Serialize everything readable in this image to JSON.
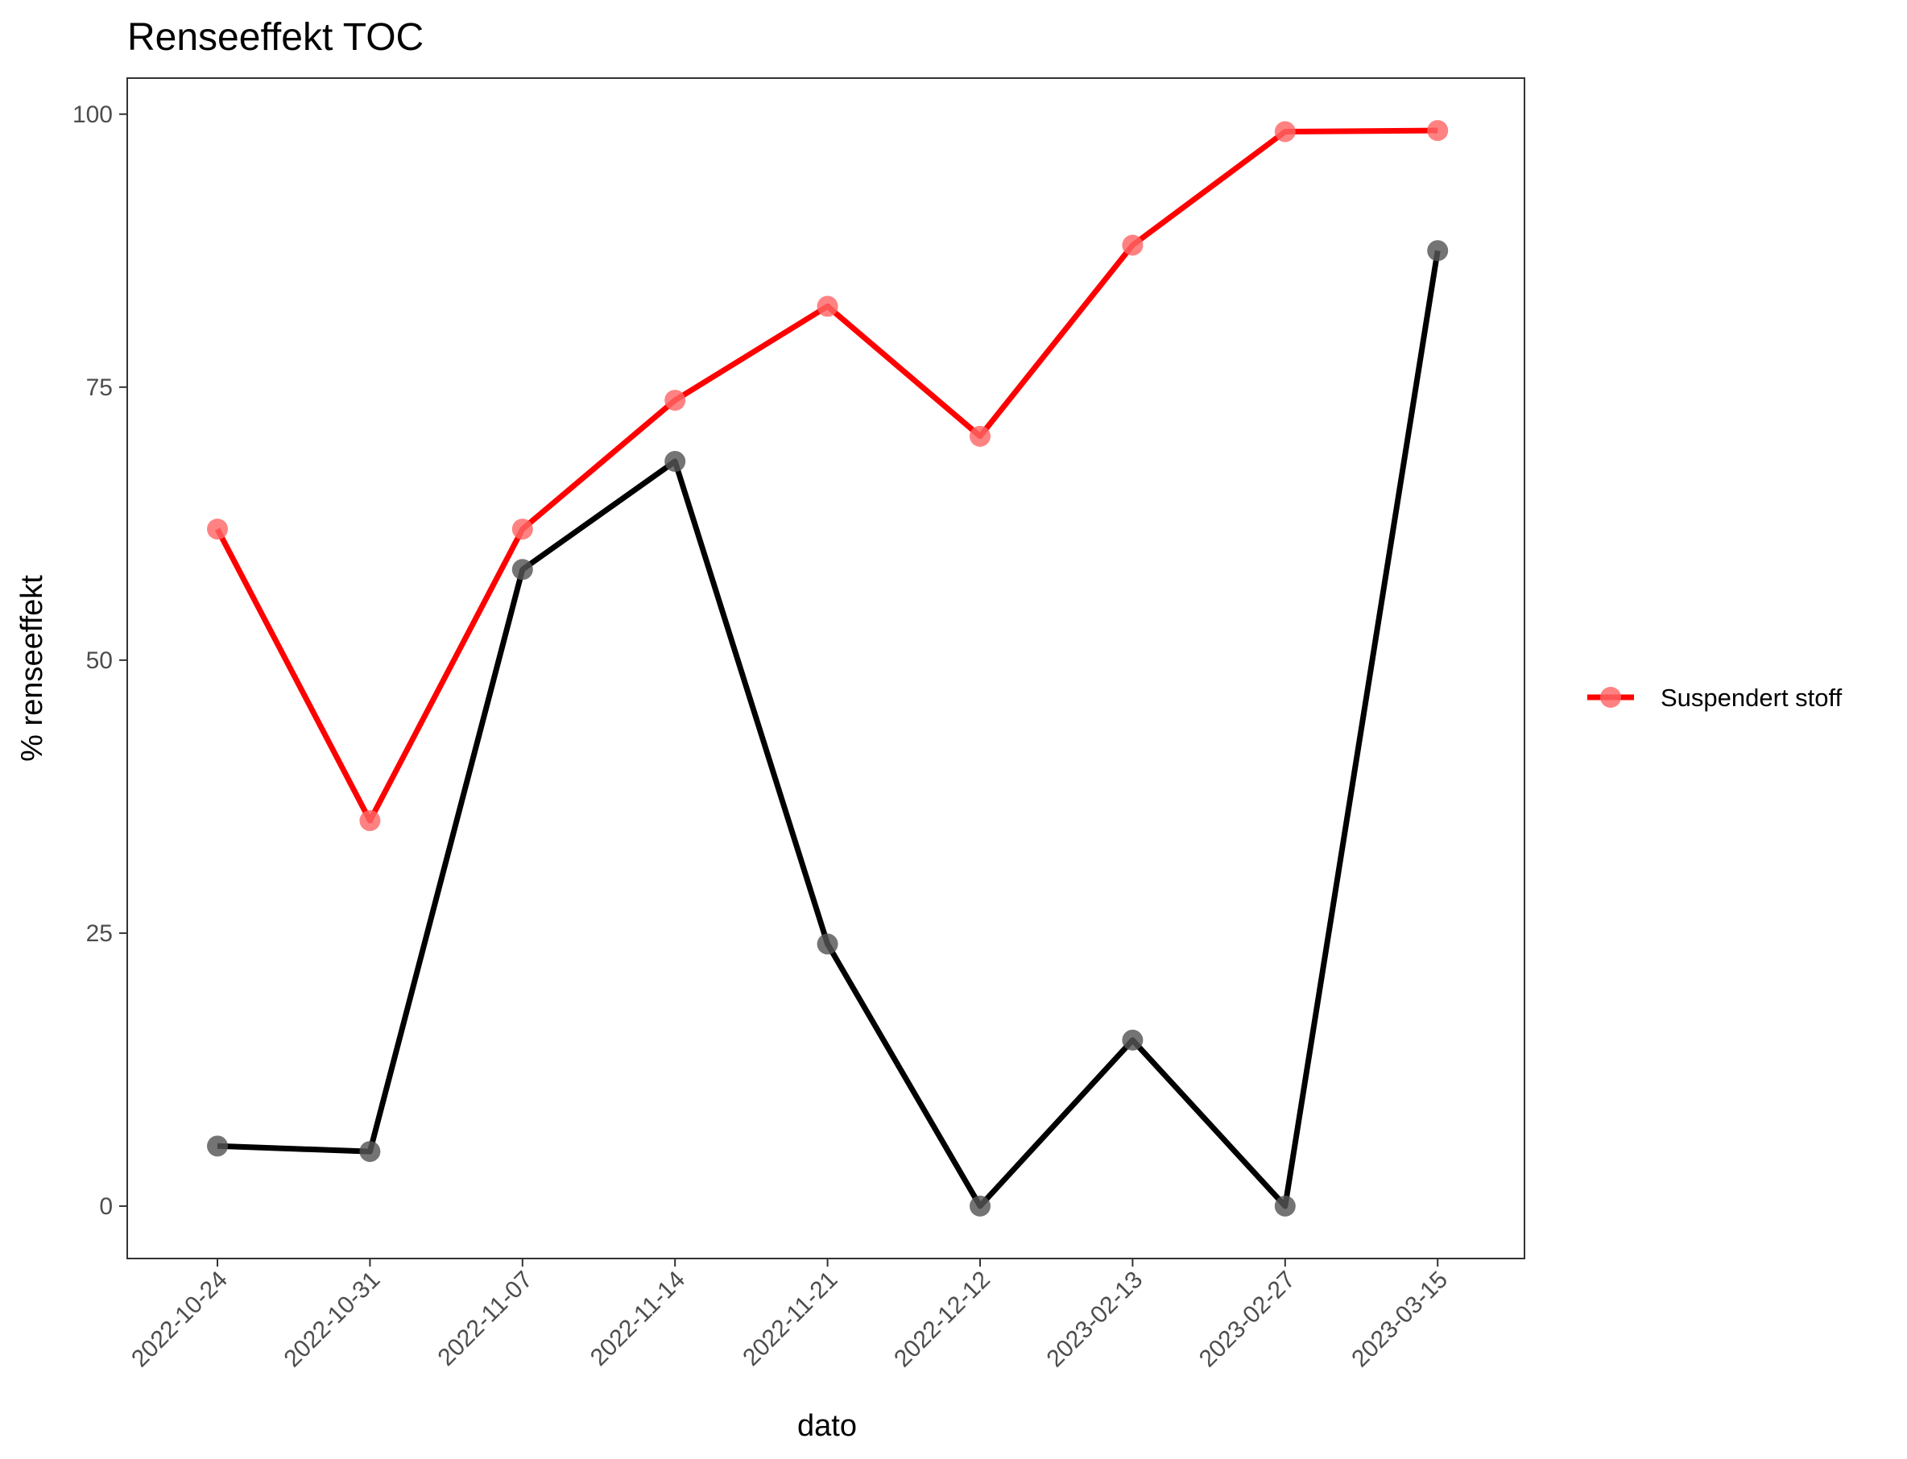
{
  "chart_data": {
    "type": "line",
    "title": "Renseeffekt TOC",
    "xlabel": "dato",
    "ylabel": "% renseeffekt",
    "x": [
      "2022-10-24",
      "2022-10-31",
      "2022-11-07",
      "2022-11-14",
      "2022-11-21",
      "2022-12-12",
      "2023-02-13",
      "2023-02-27",
      "2023-03-15"
    ],
    "yticks": [
      0,
      25,
      50,
      75,
      100
    ],
    "ylim": [
      -4.8,
      103.3
    ],
    "grid": false,
    "legend_position": "right",
    "series": [
      {
        "name": "",
        "color": "#000000",
        "point_color": "#555555",
        "in_legend": false,
        "values": [
          5.5,
          5.0,
          58.3,
          68.2,
          24.0,
          0.0,
          15.2,
          0.0,
          87.5
        ]
      },
      {
        "name": "Suspendert stoff",
        "color": "#ff0000",
        "point_color": "#ff6666",
        "in_legend": true,
        "values": [
          62.0,
          35.3,
          62.0,
          73.8,
          82.4,
          70.5,
          88.0,
          98.4,
          98.5
        ]
      }
    ]
  }
}
